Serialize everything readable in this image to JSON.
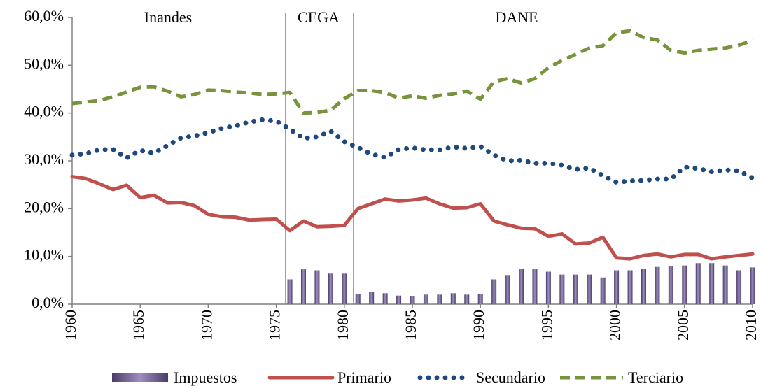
{
  "chart_data": {
    "type": "combo",
    "annotations": [
      "Inandes",
      "CEGA",
      "DANE"
    ],
    "x": [
      1960,
      1961,
      1962,
      1963,
      1964,
      1965,
      1966,
      1967,
      1968,
      1969,
      1970,
      1971,
      1972,
      1973,
      1974,
      1975,
      1976,
      1977,
      1978,
      1979,
      1980,
      1981,
      1982,
      1983,
      1984,
      1985,
      1986,
      1987,
      1988,
      1989,
      1990,
      1991,
      1992,
      1993,
      1994,
      1995,
      1996,
      1997,
      1998,
      1999,
      2000,
      2001,
      2002,
      2003,
      2004,
      2005,
      2006,
      2007,
      2008,
      2009,
      2010
    ],
    "xlim": [
      1960,
      2010
    ],
    "xticks": [
      1960,
      1965,
      1970,
      1975,
      1980,
      1985,
      1990,
      1995,
      2000,
      2005,
      2010
    ],
    "ylim": [
      0,
      60
    ],
    "yticks": [
      {
        "value": 0,
        "label": "0,0%"
      },
      {
        "value": 10,
        "label": "10,0%"
      },
      {
        "value": 20,
        "label": "20,0%"
      },
      {
        "value": 30,
        "label": "30,0%"
      },
      {
        "value": 40,
        "label": "40,0%"
      },
      {
        "value": 50,
        "label": "50,0%"
      },
      {
        "value": 60,
        "label": "60,0%"
      }
    ],
    "grid": false,
    "legend": "bottom",
    "series": [
      {
        "name": "Impuestos",
        "type": "bar",
        "color": "#4b3d66",
        "values": [
          null,
          null,
          null,
          null,
          null,
          null,
          null,
          null,
          null,
          null,
          null,
          null,
          null,
          null,
          null,
          null,
          5.2,
          7.3,
          7.1,
          6.4,
          6.4,
          2.1,
          2.6,
          2.3,
          1.8,
          1.7,
          2.0,
          2.0,
          2.3,
          2.0,
          2.2,
          5.2,
          6.1,
          7.4,
          7.4,
          6.8,
          6.2,
          6.2,
          6.2,
          5.6,
          7.1,
          7.1,
          7.4,
          7.8,
          8.0,
          8.1,
          8.6,
          8.6,
          8.1,
          7.1,
          7.7
        ]
      },
      {
        "name": "Primario",
        "type": "line",
        "style": "solid",
        "color": "#c0504d",
        "values": [
          26.7,
          26.3,
          25.2,
          24.0,
          24.9,
          22.3,
          22.8,
          21.2,
          21.3,
          20.6,
          18.8,
          18.3,
          18.2,
          17.6,
          17.7,
          17.8,
          15.4,
          17.4,
          16.2,
          16.3,
          16.5,
          20.0,
          21.0,
          22.0,
          21.6,
          21.8,
          22.2,
          21.0,
          20.1,
          20.2,
          21.0,
          17.4,
          16.6,
          15.9,
          15.8,
          14.2,
          14.7,
          12.6,
          12.8,
          14.0,
          9.7,
          9.5,
          10.2,
          10.5,
          9.9,
          10.4,
          10.4,
          9.5,
          9.9,
          10.2,
          10.5
        ]
      },
      {
        "name": "Secundario",
        "type": "line",
        "style": "dotted",
        "color": "#1f497d",
        "values": [
          31.2,
          31.5,
          32.3,
          32.4,
          30.6,
          32.2,
          31.6,
          33.2,
          34.8,
          35.2,
          35.9,
          36.8,
          37.3,
          38.1,
          38.6,
          38.3,
          36.6,
          34.7,
          35.0,
          36.2,
          34.0,
          32.8,
          31.4,
          30.7,
          32.4,
          32.7,
          32.3,
          32.3,
          32.9,
          32.6,
          33.0,
          31.2,
          30.0,
          30.1,
          29.5,
          29.5,
          29.1,
          28.2,
          28.5,
          26.9,
          25.5,
          25.8,
          25.9,
          26.2,
          26.2,
          28.7,
          28.4,
          27.7,
          28.1,
          27.9,
          26.4
        ]
      },
      {
        "name": "Terciario",
        "type": "line",
        "style": "dashed",
        "color": "#77933c",
        "values": [
          42.0,
          42.3,
          42.6,
          43.4,
          44.4,
          45.4,
          45.5,
          44.6,
          43.4,
          43.9,
          44.8,
          44.7,
          44.4,
          44.2,
          43.9,
          44.0,
          44.3,
          40.0,
          40.1,
          40.6,
          43.0,
          44.7,
          44.7,
          44.3,
          43.1,
          43.6,
          43.1,
          43.7,
          44.0,
          44.6,
          42.9,
          46.6,
          47.2,
          46.3,
          47.2,
          49.5,
          51.0,
          52.3,
          53.6,
          54.1,
          56.8,
          57.2,
          55.8,
          55.3,
          53.1,
          52.6,
          53.1,
          53.4,
          53.6,
          54.2,
          55.2
        ]
      }
    ]
  }
}
